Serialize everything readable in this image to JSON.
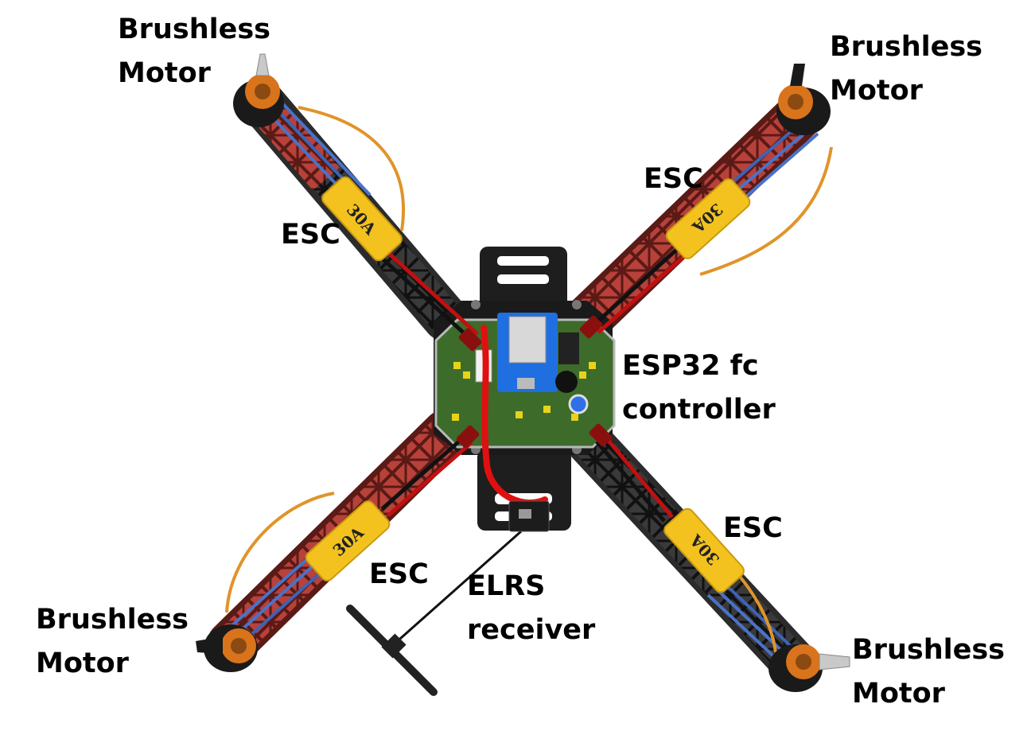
{
  "labels": {
    "motor_top_left": "Brushless\nMotor",
    "motor_top_right": "Brushless\nMotor",
    "motor_bottom_left": "Brushless\nMotor",
    "motor_bottom_right": "Brushless\nMotor",
    "esc_top_left": "ESC",
    "esc_top_right": "ESC",
    "esc_bottom_left": "ESC",
    "esc_bottom_right": "ESC",
    "flight_controller": "ESP32 fc\ncontroller",
    "receiver": "ELRS\nreceiver"
  },
  "esc_marking": "30A",
  "colors": {
    "arm_red": "#b8413a",
    "arm_dark": "#5a1a16",
    "frame_black": "#2b2b2b",
    "pcb_green": "#3d6b2a",
    "esc_yellow": "#f3c21f",
    "motor_orange": "#d9731c",
    "wire_blue": "#4a72c8",
    "wire_red": "#e01010",
    "esp32_blue": "#1f6fe0"
  }
}
